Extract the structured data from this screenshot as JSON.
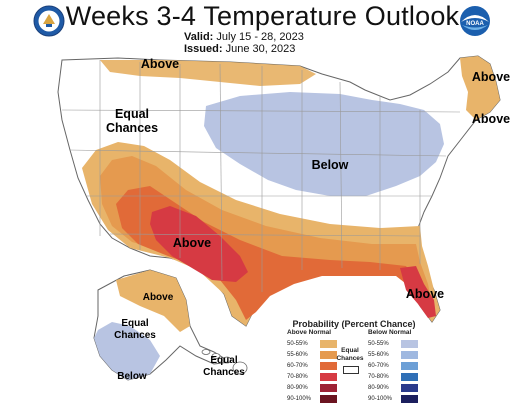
{
  "header": {
    "title": "Weeks 3-4 Temperature Outlook",
    "valid_label": "Valid:",
    "valid_value": "July 15 - 28, 2023",
    "issued_label": "Issued:",
    "issued_value": "June 30, 2023"
  },
  "logos": {
    "left": "department-of-commerce-seal",
    "right": "noaa-logo",
    "right_text": "NOAA"
  },
  "map_labels": {
    "above_north": "Above",
    "equal_chances_west_1": "Equal",
    "equal_chances_west_2": "Chances",
    "below_central": "Below",
    "above_southwest": "Above",
    "above_northeast_1": "Above",
    "above_northeast_2": "Above",
    "above_florida": "Above",
    "alaska_above": "Above",
    "alaska_equal_1": "Equal",
    "alaska_equal_2": "Chances",
    "alaska_below": "Below",
    "hawaii_equal_1": "Equal",
    "hawaii_equal_2": "Chances"
  },
  "legend": {
    "title": "Probability (Percent Chance)",
    "above_heading": "Above Normal",
    "below_heading": "Below Normal",
    "equal_1": "Equal",
    "equal_2": "Chances",
    "rows": [
      "50-55%",
      "55-60%",
      "60-70%",
      "70-80%",
      "80-90%",
      "90-100%"
    ],
    "above_colors": [
      "#e8b46a",
      "#e59a4f",
      "#e16a38",
      "#d63a43",
      "#9e2235",
      "#6b1420"
    ],
    "below_colors": [
      "#b8c4e2",
      "#9fb8e0",
      "#6c9fd6",
      "#2f6fb6",
      "#2a3a8c",
      "#1c1f5e"
    ]
  }
}
